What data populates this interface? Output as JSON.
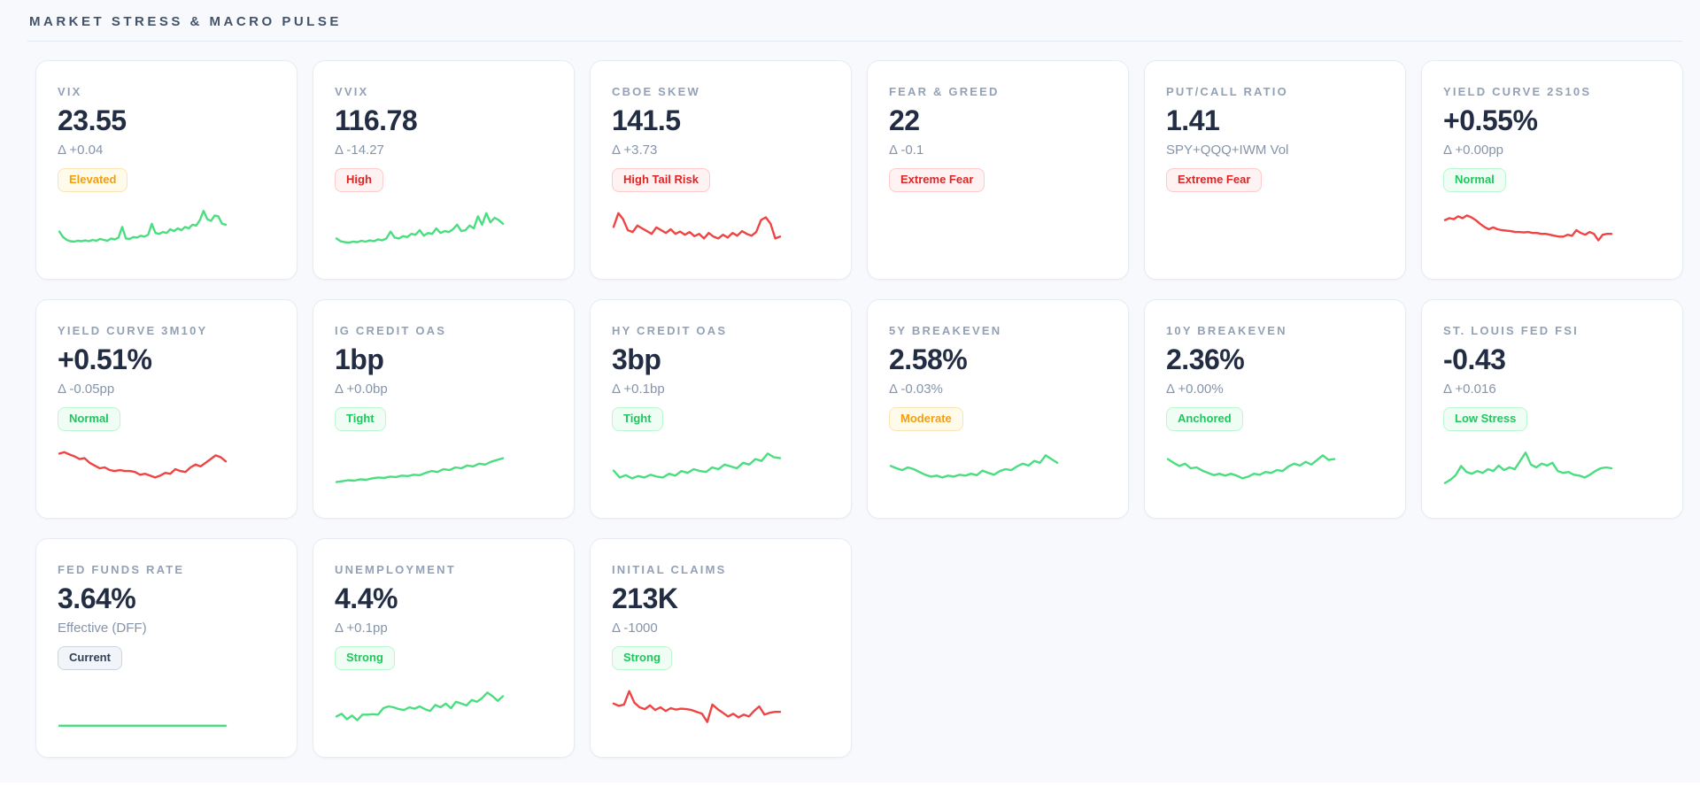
{
  "header": {
    "title": "MARKET STRESS & MACRO PULSE"
  },
  "colors": {
    "page_bg": "#f7f9fc",
    "card_bg": "#ffffff",
    "card_border": "#e7ecf3",
    "title_text": "#93a1b7",
    "value_text": "#222d44",
    "sub_text": "#8694aa",
    "line_green": "#4ade80",
    "line_red": "#ef4444",
    "badge_variants": {
      "warn": {
        "text": "#f59e0b",
        "bg": "#fffbeb",
        "border": "#fbe3b3"
      },
      "danger": {
        "text": "#dc2626",
        "bg": "#fef2f2",
        "border": "#fecaca"
      },
      "good": {
        "text": "#22c55e",
        "bg": "#f0fdf4",
        "border": "#bbf7d0"
      },
      "neutral": {
        "text": "#334155",
        "bg": "#f1f5f9",
        "border": "#cbd5e1"
      }
    }
  },
  "cards": [
    {
      "title": "VIX",
      "value": "23.55",
      "sub": "Δ +0.04",
      "badge": "Elevated",
      "variant": "warn",
      "spark_color": "green",
      "spark": [
        45,
        33,
        27,
        24,
        23,
        25,
        24,
        26,
        24,
        27,
        25,
        29,
        27,
        25,
        30,
        28,
        32,
        55,
        30,
        29,
        33,
        32,
        36,
        34,
        38,
        62,
        42,
        40,
        44,
        42,
        50,
        46,
        52,
        48,
        55,
        52,
        60,
        58,
        70,
        90,
        72,
        68,
        80,
        78,
        62,
        60
      ]
    },
    {
      "title": "VVIX",
      "value": "116.78",
      "sub": "Δ -14.27",
      "badge": "High",
      "variant": "danger",
      "spark_color": "green",
      "spark": [
        30,
        24,
        22,
        21,
        23,
        22,
        25,
        23,
        26,
        24,
        28,
        26,
        30,
        45,
        32,
        30,
        35,
        33,
        40,
        38,
        48,
        36,
        42,
        40,
        52,
        42,
        46,
        44,
        50,
        60,
        46,
        48,
        58,
        52,
        78,
        60,
        85,
        65,
        75,
        70,
        62
      ]
    },
    {
      "title": "CBOE SKEW",
      "value": "141.5",
      "sub": "Δ +3.73",
      "badge": "High Tail Risk",
      "variant": "danger",
      "spark_color": "red",
      "spark": [
        55,
        85,
        72,
        48,
        44,
        58,
        52,
        46,
        40,
        54,
        48,
        42,
        50,
        40,
        45,
        38,
        44,
        35,
        40,
        30,
        42,
        34,
        30,
        38,
        32,
        42,
        36,
        46,
        40,
        36,
        44,
        70,
        76,
        62,
        30,
        34
      ]
    },
    {
      "title": "FEAR & GREED",
      "value": "22",
      "sub": "Δ -0.1",
      "badge": "Extreme Fear",
      "variant": "danger",
      "spark_color": null,
      "spark": null
    },
    {
      "title": "PUT/CALL RATIO",
      "value": "1.41",
      "sub": "SPY+QQQ+IWM Vol",
      "badge": "Extreme Fear",
      "variant": "danger",
      "spark_color": null,
      "spark": null
    },
    {
      "title": "YIELD CURVE 2S10S",
      "value": "+0.55%",
      "sub": "Δ +0.00pp",
      "badge": "Normal",
      "variant": "good",
      "spark_color": "red",
      "spark": [
        70,
        74,
        72,
        78,
        74,
        80,
        76,
        70,
        62,
        55,
        50,
        54,
        50,
        48,
        47,
        46,
        44,
        44,
        43,
        44,
        42,
        42,
        40,
        40,
        38,
        36,
        34,
        34,
        38,
        36,
        48,
        42,
        38,
        44,
        40,
        26,
        38,
        40,
        40
      ]
    },
    {
      "title": "YIELD CURVE 3M10Y",
      "value": "+0.51%",
      "sub": "Δ -0.05pp",
      "badge": "Normal",
      "variant": "good",
      "spark_color": "red",
      "spark": [
        82,
        85,
        80,
        76,
        70,
        72,
        62,
        56,
        50,
        52,
        46,
        44,
        46,
        44,
        44,
        42,
        36,
        38,
        34,
        30,
        34,
        40,
        38,
        48,
        44,
        42,
        52,
        58,
        54,
        62,
        70,
        78,
        74,
        65
      ]
    },
    {
      "title": "IG CREDIT OAS",
      "value": "1bp",
      "sub": "Δ +0.0bp",
      "badge": "Tight",
      "variant": "good",
      "spark_color": "green",
      "spark": [
        20,
        22,
        24,
        23,
        26,
        25,
        28,
        30,
        29,
        32,
        31,
        34,
        33,
        36,
        35,
        40,
        44,
        42,
        48,
        46,
        52,
        50,
        56,
        54,
        60,
        58,
        64,
        68,
        72
      ]
    },
    {
      "title": "HY CREDIT OAS",
      "value": "3bp",
      "sub": "Δ +0.1bp",
      "badge": "Tight",
      "variant": "good",
      "spark_color": "green",
      "spark": [
        45,
        30,
        35,
        28,
        33,
        30,
        36,
        32,
        30,
        38,
        34,
        44,
        40,
        48,
        44,
        42,
        52,
        48,
        58,
        54,
        50,
        62,
        58,
        70,
        66,
        82,
        74,
        72
      ]
    },
    {
      "title": "5Y BREAKEVEN",
      "value": "2.58%",
      "sub": "Δ -0.03%",
      "badge": "Moderate",
      "variant": "warn",
      "spark_color": "green",
      "spark": [
        55,
        50,
        46,
        52,
        48,
        42,
        36,
        32,
        34,
        30,
        34,
        32,
        36,
        34,
        38,
        35,
        45,
        40,
        36,
        44,
        48,
        46,
        54,
        60,
        56,
        66,
        62,
        78,
        70,
        62
      ]
    },
    {
      "title": "10Y BREAKEVEN",
      "value": "2.36%",
      "sub": "Δ +0.00%",
      "badge": "Anchored",
      "variant": "good",
      "spark_color": "green",
      "spark": [
        70,
        62,
        55,
        60,
        50,
        52,
        45,
        40,
        35,
        38,
        34,
        38,
        34,
        28,
        32,
        38,
        36,
        42,
        40,
        46,
        44,
        54,
        60,
        56,
        64,
        58,
        68,
        78,
        68,
        70
      ]
    },
    {
      "title": "ST. LOUIS FED FSI",
      "value": "-0.43",
      "sub": "Δ +0.016",
      "badge": "Low Stress",
      "variant": "good",
      "spark_color": "green",
      "spark": [
        18,
        25,
        35,
        55,
        42,
        38,
        44,
        40,
        48,
        44,
        56,
        46,
        52,
        48,
        66,
        84,
        58,
        52,
        60,
        56,
        62,
        44,
        40,
        42,
        36,
        34,
        30,
        36,
        44,
        50,
        52,
        50
      ]
    },
    {
      "title": "FED FUNDS RATE",
      "value": "3.64%",
      "sub": "Effective (DFF)",
      "badge": "Current",
      "variant": "neutral",
      "spark_color": "green",
      "spark": [
        10,
        10,
        10,
        10,
        10,
        10,
        10,
        10,
        10,
        10
      ]
    },
    {
      "title": "UNEMPLOYMENT",
      "value": "4.4%",
      "sub": "Δ +0.1pp",
      "badge": "Strong",
      "variant": "good",
      "spark_color": "green",
      "spark": [
        30,
        36,
        24,
        32,
        22,
        34,
        34,
        35,
        34,
        48,
        52,
        50,
        46,
        44,
        50,
        47,
        52,
        46,
        42,
        55,
        50,
        58,
        48,
        62,
        58,
        54,
        66,
        62,
        70,
        82,
        74,
        64,
        74
      ]
    },
    {
      "title": "INITIAL CLAIMS",
      "value": "213K",
      "sub": "Δ -1000",
      "badge": "Strong",
      "variant": "good",
      "spark_color": "red",
      "spark": [
        58,
        53,
        56,
        85,
        60,
        50,
        46,
        54,
        44,
        50,
        42,
        48,
        45,
        47,
        46,
        44,
        40,
        36,
        18,
        56,
        46,
        38,
        30,
        36,
        28,
        34,
        30,
        42,
        52,
        34,
        38,
        40,
        40
      ]
    }
  ]
}
